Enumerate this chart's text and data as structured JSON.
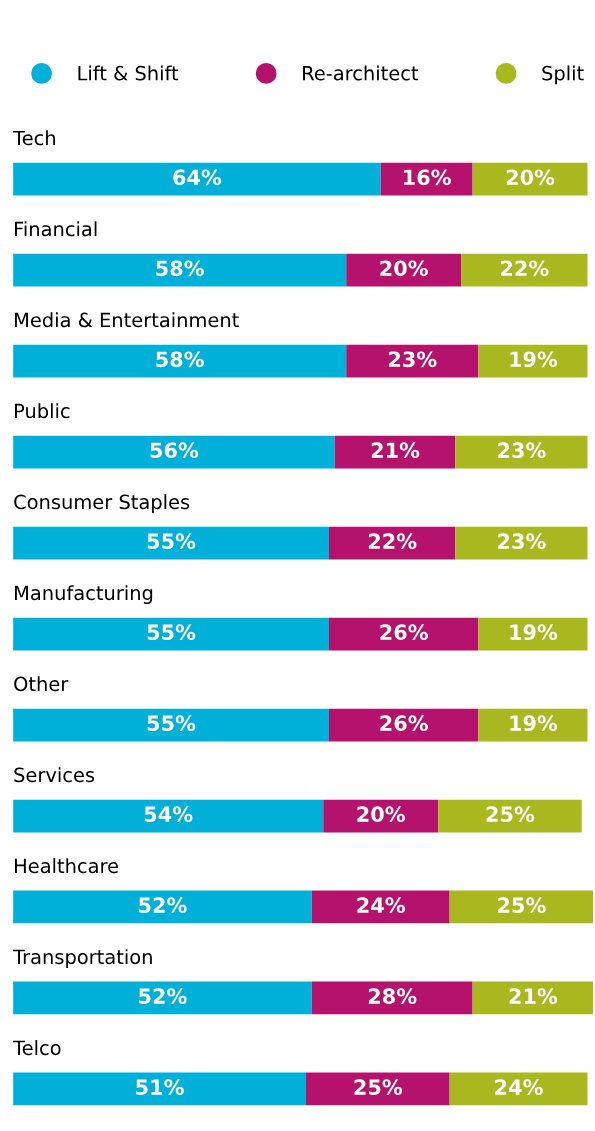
{
  "chart_data": {
    "type": "bar",
    "orientation": "horizontal",
    "stacked": true,
    "legend": "top",
    "grid": false,
    "tick_labels": false,
    "xlim": [
      0,
      101
    ],
    "categories": [
      "Tech",
      "Financial",
      "Media & Entertainment",
      "Public",
      "Consumer Staples",
      "Manufacturing",
      "Other",
      "Services",
      "Healthcare",
      "Transportation",
      "Telco"
    ],
    "series": [
      {
        "name": "Lift & Shift",
        "color": "#00b0d8",
        "values": [
          64,
          58,
          58,
          56,
          55,
          55,
          55,
          54,
          52,
          52,
          51
        ],
        "value_labels": [
          "64%",
          "58%",
          "58%",
          "56%",
          "55%",
          "55%",
          "55%",
          "54%",
          "52%",
          "52%",
          "51%"
        ]
      },
      {
        "name": "Re-architect",
        "color": "#b5126e",
        "values": [
          16,
          20,
          23,
          21,
          22,
          26,
          26,
          20,
          24,
          28,
          25
        ],
        "value_labels": [
          "16%",
          "20%",
          "23%",
          "21%",
          "22%",
          "26%",
          "26%",
          "20%",
          "24%",
          "28%",
          "25%"
        ]
      },
      {
        "name": "Split",
        "color": "#a8b81e",
        "values": [
          20,
          22,
          19,
          23,
          23,
          19,
          19,
          25,
          25,
          21,
          24
        ],
        "value_labels": [
          "20%",
          "22%",
          "19%",
          "23%",
          "23%",
          "19%",
          "19%",
          "25%",
          "25%",
          "21%",
          "24%"
        ]
      }
    ]
  }
}
